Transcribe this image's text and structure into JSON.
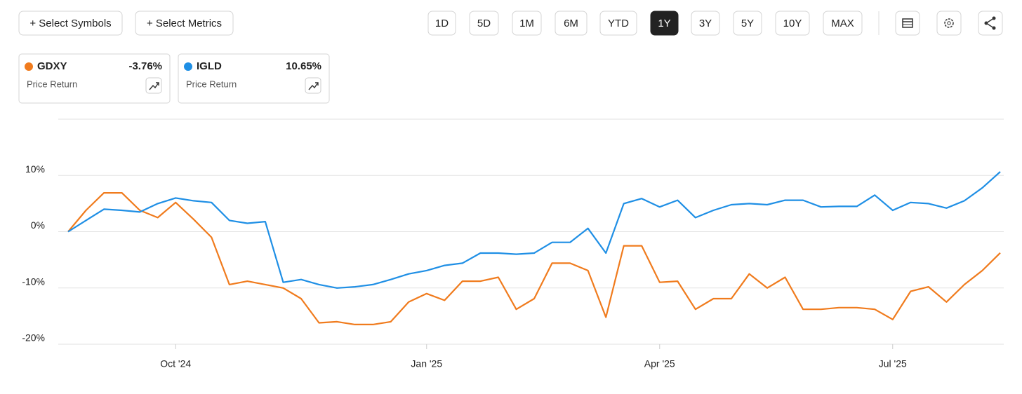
{
  "toolbar": {
    "add_buttons": [
      "+ Select Symbols",
      "+ Select Metrics"
    ],
    "ranges": [
      "1D",
      "5D",
      "1M",
      "6M",
      "YTD",
      "1Y",
      "3Y",
      "5Y",
      "10Y",
      "MAX"
    ],
    "active_range": "1Y"
  },
  "legend_cards": [
    {
      "value": "-3.76%",
      "metric": "Price Return"
    },
    {
      "value": "10.65%",
      "metric": "Price Return"
    }
  ],
  "chart_data": {
    "type": "line",
    "categories": [
      null,
      null,
      null,
      null,
      null,
      null,
      "Oct '24",
      null,
      null,
      null,
      null,
      null,
      null,
      null,
      null,
      null,
      null,
      null,
      null,
      null,
      "Jan '25",
      null,
      null,
      null,
      null,
      null,
      null,
      null,
      null,
      null,
      null,
      null,
      null,
      "Apr '25",
      null,
      null,
      null,
      null,
      null,
      null,
      null,
      null,
      null,
      null,
      null,
      null,
      "Jul '25",
      null,
      null,
      null,
      null,
      null,
      null
    ],
    "series": [
      {
        "name": "GDXY",
        "color": "#f07b1d",
        "values": [
          0,
          3.8,
          6.9,
          6.9,
          3.8,
          2.5,
          5.2,
          2.2,
          -1,
          -9.4,
          -8.8,
          -9.4,
          -10,
          -11.9,
          -16.2,
          -16,
          -16.5,
          -16.5,
          -16,
          -12.5,
          -11,
          -12.2,
          -8.8,
          -8.8,
          -8.1,
          -13.8,
          -11.9,
          -5.6,
          -5.6,
          -6.9,
          -15.2,
          -2.5,
          -2.5,
          -9,
          -8.8,
          -13.8,
          -11.9,
          -11.9,
          -7.5,
          -10,
          -8.1,
          -13.8,
          -13.8,
          -13.5,
          -13.5,
          -13.8,
          -15.6,
          -10.6,
          -9.8,
          -12.5,
          -9.4,
          -6.9,
          -3.76
        ]
      },
      {
        "name": "IGLD",
        "color": "#1f8fe5",
        "values": [
          0,
          2,
          4,
          3.8,
          3.5,
          5,
          6,
          5.5,
          5.2,
          2,
          1.5,
          1.8,
          -9,
          -8.5,
          -9.4,
          -10,
          -9.8,
          -9.4,
          -8.5,
          -7.5,
          -6.9,
          -6,
          -5.6,
          -3.8,
          -3.8,
          -4,
          -3.8,
          -1.9,
          -1.9,
          0.6,
          -3.8,
          5,
          5.9,
          4.4,
          5.6,
          2.5,
          3.8,
          4.8,
          5,
          4.8,
          5.6,
          5.6,
          4.4,
          4.5,
          4.5,
          6.5,
          3.8,
          5.2,
          5,
          4.2,
          5.5,
          7.8,
          10.65
        ]
      }
    ],
    "ylim": [
      -20,
      20
    ],
    "yticks": [
      {
        "value": -20,
        "label": "-20%"
      },
      {
        "value": -10,
        "label": "-10%"
      },
      {
        "value": 0,
        "label": "0%"
      },
      {
        "value": 10,
        "label": "10%"
      }
    ],
    "grid": true
  }
}
